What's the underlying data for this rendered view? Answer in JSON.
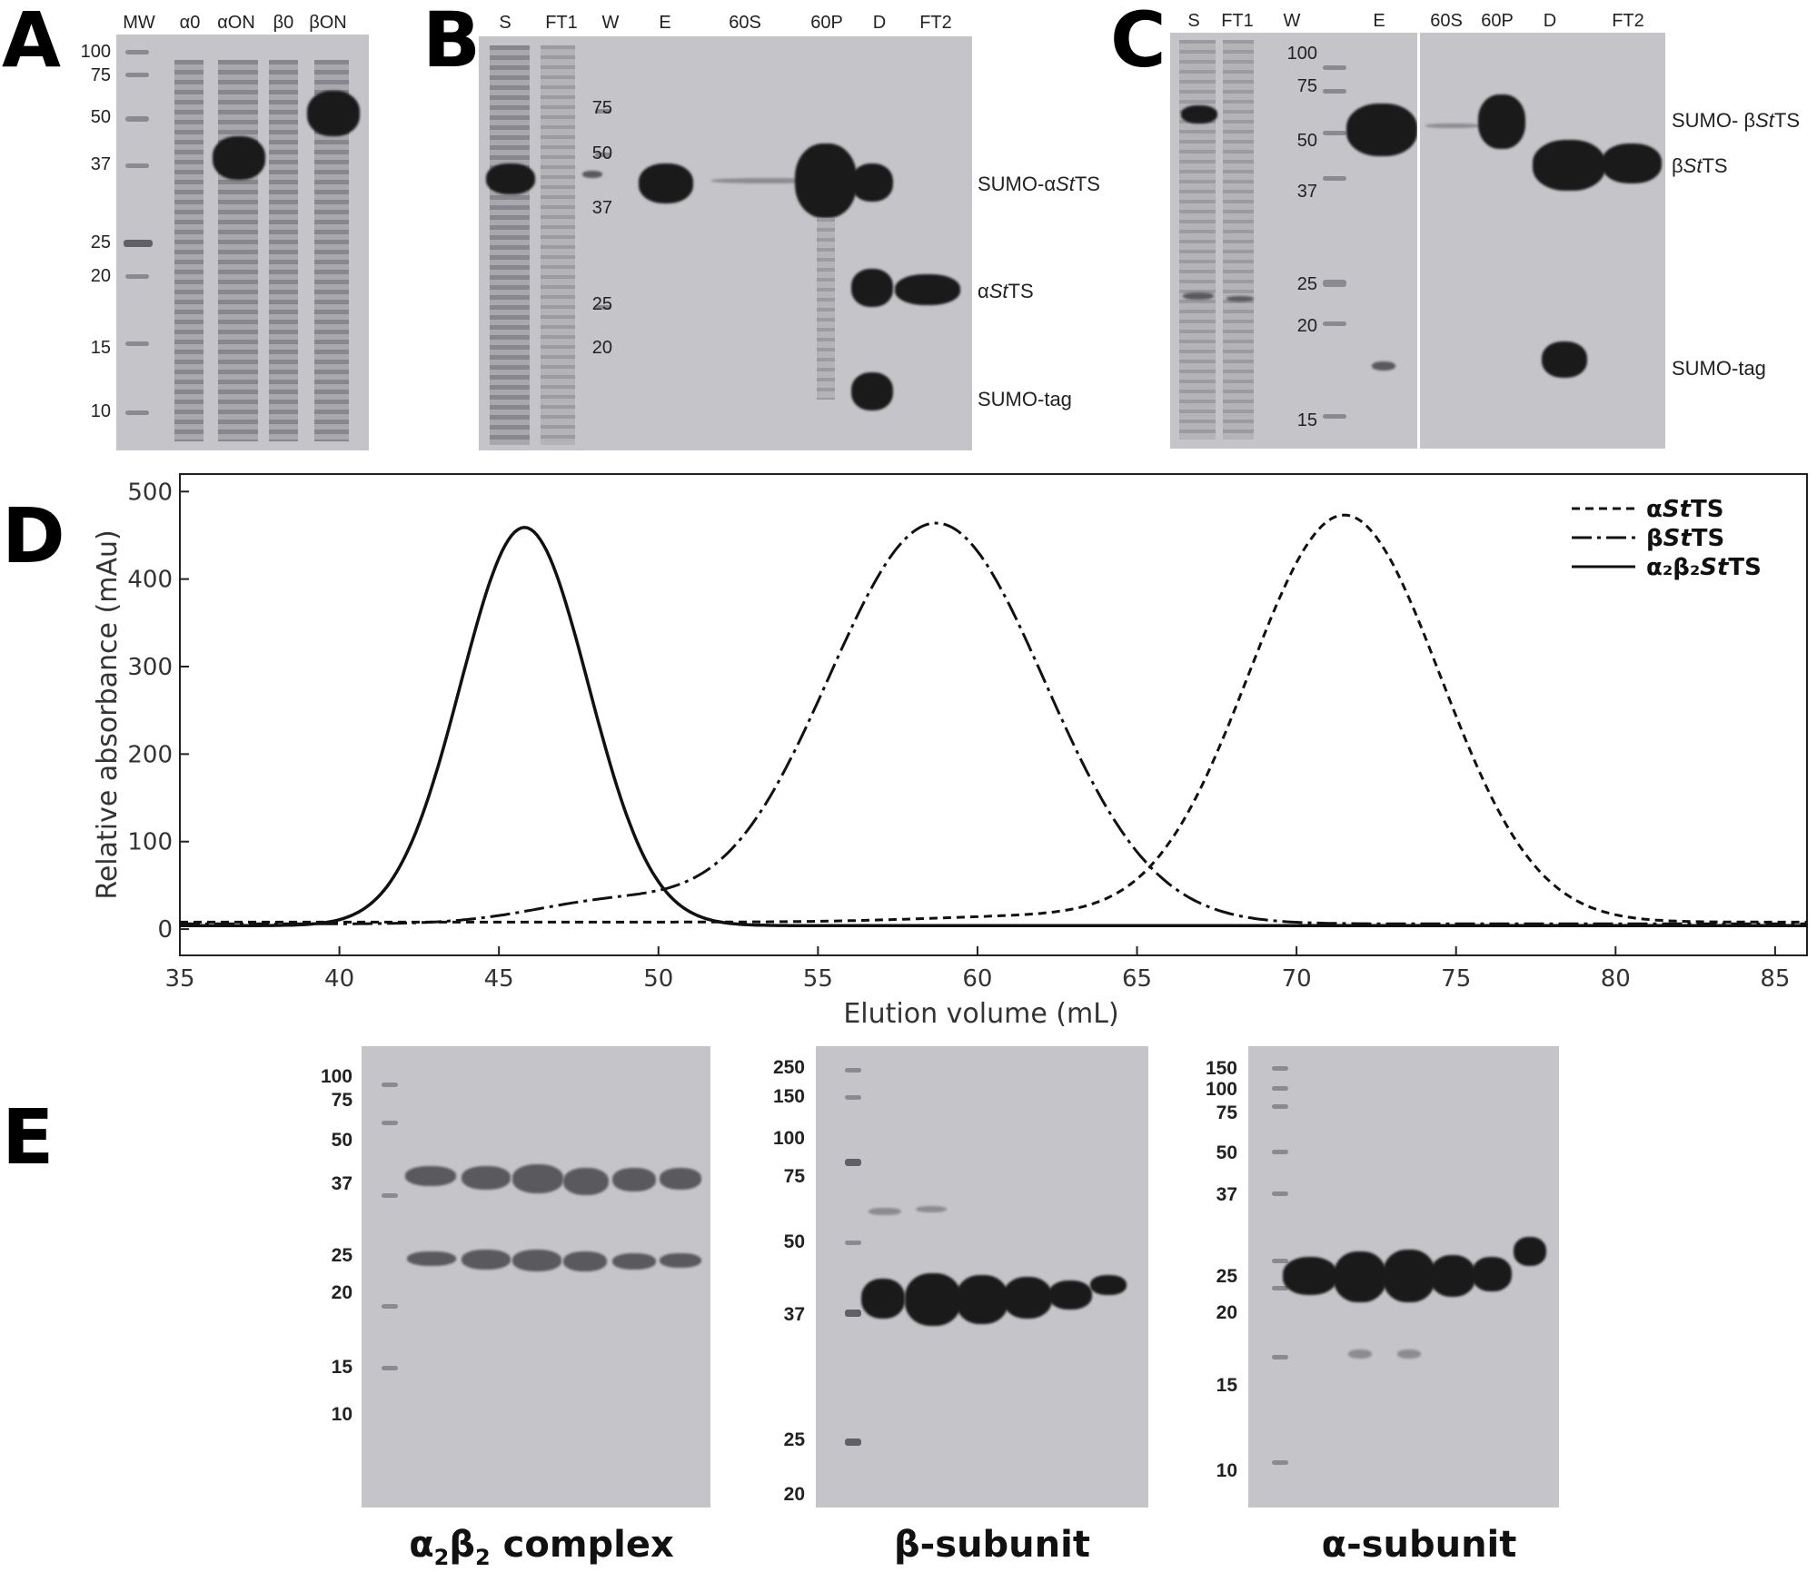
{
  "panels": {
    "A": {
      "letter": "A",
      "lanes": [
        "MW",
        "α0",
        "αON",
        "β0",
        "βON"
      ],
      "mw_markers": [
        "100",
        "75",
        "50",
        "37",
        "25",
        "20",
        "15",
        "10"
      ]
    },
    "B": {
      "letter": "B",
      "lanes": [
        "S",
        "FT1",
        "W",
        "E",
        "60S",
        "60P",
        "D",
        "FT2"
      ],
      "mw_markers": [
        "75",
        "50",
        "37",
        "25",
        "20"
      ],
      "protein_labels": [
        {
          "prefix": "SUMO-α",
          "italic": "St",
          "suffix": "TS"
        },
        {
          "prefix": "α",
          "italic": "St",
          "suffix": "TS"
        },
        {
          "prefix": "SUMO-tag",
          "italic": "",
          "suffix": ""
        }
      ]
    },
    "C": {
      "letter": "C",
      "lanes": [
        "S",
        "FT1",
        "W",
        "E",
        "60S",
        "60P",
        "D",
        "FT2"
      ],
      "mw_markers": [
        "100",
        "75",
        "50",
        "37",
        "25",
        "20",
        "15"
      ],
      "protein_labels": [
        {
          "prefix": "SUMO- β",
          "italic": "St",
          "suffix": "TS"
        },
        {
          "prefix": "β",
          "italic": "St",
          "suffix": "TS"
        },
        {
          "prefix": "SUMO-tag",
          "italic": "",
          "suffix": ""
        }
      ]
    },
    "D": {
      "letter": "D"
    },
    "E": {
      "letter": "E",
      "gels": [
        {
          "title_pre": "α",
          "title_sub1": "2",
          "title_mid": "β",
          "title_sub2": "2",
          "title_post": " complex",
          "mw_markers": [
            "100",
            "75",
            "50",
            "37",
            "25",
            "20",
            "15",
            "10"
          ]
        },
        {
          "title_pre": "β-subunit",
          "title_sub1": "",
          "title_mid": "",
          "title_sub2": "",
          "title_post": "",
          "mw_markers": [
            "250",
            "150",
            "100",
            "75",
            "50",
            "37",
            "25",
            "20"
          ]
        },
        {
          "title_pre": "α-subunit",
          "title_sub1": "",
          "title_mid": "",
          "title_sub2": "",
          "title_post": "",
          "mw_markers": [
            "150",
            "100",
            "75",
            "50",
            "37",
            "25",
            "20",
            "15",
            "10"
          ]
        }
      ]
    }
  },
  "chart_data": {
    "type": "line",
    "xlabel": "Elution volume (mL)",
    "ylabel": "Relative absorbance (mAu)",
    "xlim": [
      35,
      86
    ],
    "ylim": [
      -30,
      520
    ],
    "xticks": [
      35,
      40,
      45,
      50,
      55,
      60,
      65,
      70,
      75,
      80,
      85
    ],
    "yticks": [
      0,
      100,
      200,
      300,
      400,
      500
    ],
    "legend_position": "top-right",
    "series": [
      {
        "name": "αStTS",
        "legend_prefix": "α",
        "legend_italic": "St",
        "legend_suffix": "TS",
        "style": "dashed",
        "peaks": [
          {
            "center": 71.5,
            "height": 465,
            "width": 3.0
          },
          {
            "center": 62,
            "height": 7,
            "width": 3.5
          }
        ],
        "baseline": 8
      },
      {
        "name": "βStTS",
        "legend_prefix": "β",
        "legend_italic": "St",
        "legend_suffix": "TS",
        "style": "dash-dot",
        "peaks": [
          {
            "center": 58.7,
            "height": 458,
            "width": 3.4
          },
          {
            "center": 48.5,
            "height": 25,
            "width": 2.5
          }
        ],
        "baseline": 6
      },
      {
        "name": "α2β2StTS",
        "legend_prefix": "α₂β₂",
        "legend_italic": "St",
        "legend_suffix": "TS",
        "style": "solid",
        "peaks": [
          {
            "center": 45.8,
            "height": 455,
            "width": 2.0
          }
        ],
        "baseline": 4
      }
    ]
  }
}
